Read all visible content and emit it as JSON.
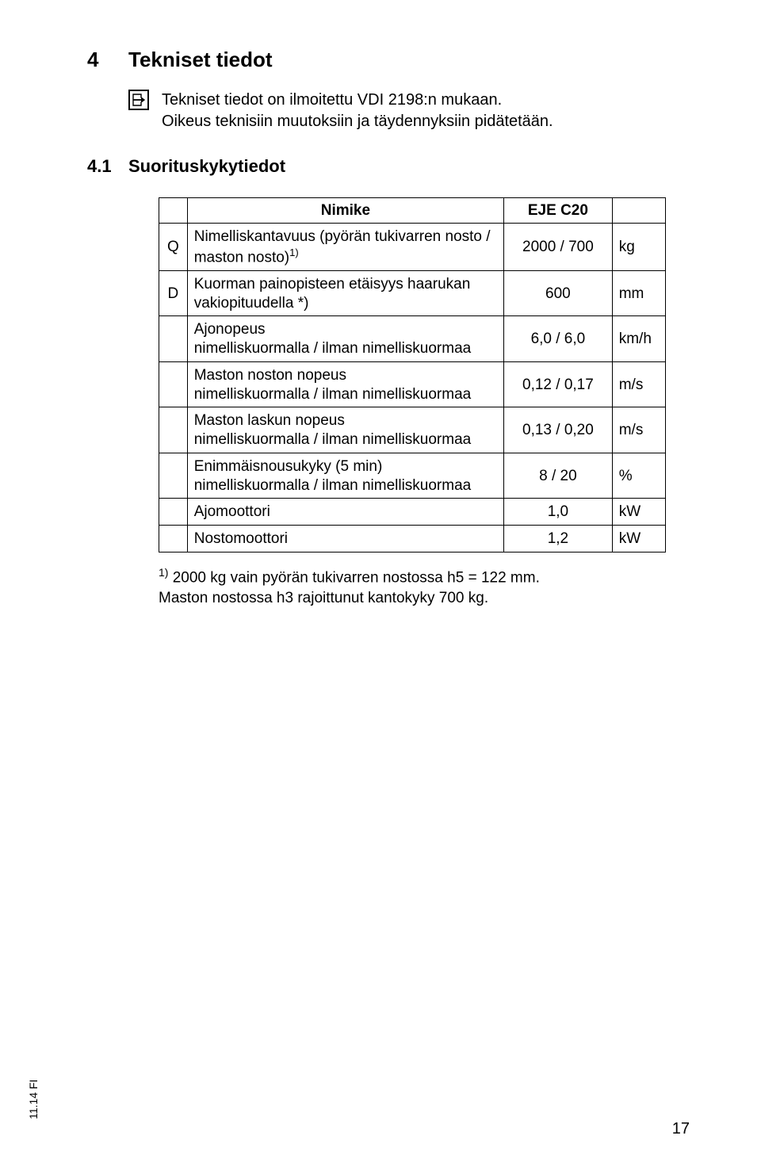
{
  "section": {
    "number": "4",
    "title": "Tekniset tiedot",
    "infoLine1": "Tekniset tiedot on ilmoitettu VDI 2198:n mukaan.",
    "infoLine2": "Oikeus teknisiin muutoksiin ja täydennyksiin pidätetään."
  },
  "subsection": {
    "number": "4.1",
    "title": "Suorituskykytiedot"
  },
  "table": {
    "header": {
      "nimike": "Nimike",
      "model": "EJE C20"
    },
    "rows": [
      {
        "idx": "Q",
        "label": "Nimelliskantavuus (pyörän tukivarren nosto / maston nosto)",
        "sup": "1)",
        "value": "2000 / 700",
        "unit": "kg"
      },
      {
        "idx": "D",
        "label": "Kuorman painopisteen etäisyys haarukan vakiopituudella *)",
        "sup": "",
        "value": "600",
        "unit": "mm"
      },
      {
        "idx": "",
        "label": "Ajonopeus\nnimelliskuormalla / ilman nimelliskuormaa",
        "sup": "",
        "value": "6,0 / 6,0",
        "unit": "km/h"
      },
      {
        "idx": "",
        "label": "Maston noston nopeus\nnimelliskuormalla / ilman nimelliskuormaa",
        "sup": "",
        "value": "0,12 / 0,17",
        "unit": "m/s"
      },
      {
        "idx": "",
        "label": "Maston laskun nopeus\nnimelliskuormalla / ilman nimelliskuormaa",
        "sup": "",
        "value": "0,13 / 0,20",
        "unit": "m/s"
      },
      {
        "idx": "",
        "label": "Enimmäisnousukyky (5 min)\nnimelliskuormalla / ilman nimelliskuormaa",
        "sup": "",
        "value": "8 / 20",
        "unit": "%"
      },
      {
        "idx": "",
        "label": "Ajomoottori",
        "sup": "",
        "value": "1,0",
        "unit": "kW"
      },
      {
        "idx": "",
        "label": "Nostomoottori",
        "sup": "",
        "value": "1,2",
        "unit": "kW"
      }
    ]
  },
  "footnote": {
    "sup": "1)",
    "line1": " 2000 kg vain pyörän tukivarren nostossa h5 = 122 mm.",
    "line2": "Maston nostossa h3 rajoittunut kantokyky 700 kg."
  },
  "sideLabel": "11.14 FI",
  "pageNumber": "17"
}
